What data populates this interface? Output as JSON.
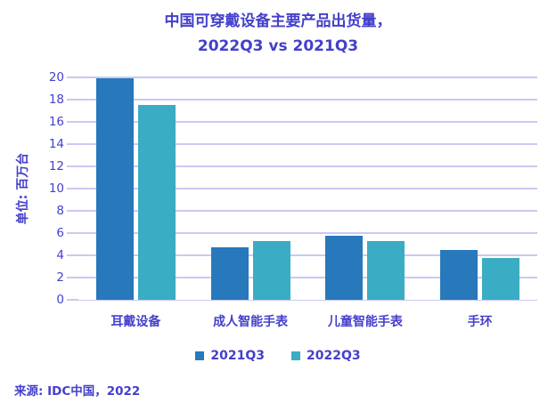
{
  "title": {
    "line1": "中国可穿戴设备主要产品出货量，",
    "line2": "2022Q3 vs 2021Q3"
  },
  "source": "来源: IDC中国，2022",
  "colors": {
    "text_accent": "#4440cb",
    "grid": "#c9c9f2",
    "series_2021q3": "#2878bc",
    "series_2022q3": "#3aacc4",
    "background": "#ffffff"
  },
  "chart_data": {
    "type": "bar",
    "title": "中国可穿戴设备主要产品出货量，2022Q3 vs 2021Q3",
    "xlabel": "",
    "ylabel": "单位: 百万台",
    "categories": [
      "耳戴设备",
      "成人智能手表",
      "儿童智能手表",
      "手环"
    ],
    "series": [
      {
        "name": "2021Q3",
        "color": "#2878bc",
        "values": [
          19.9,
          4.7,
          5.8,
          4.5
        ]
      },
      {
        "name": "2022Q3",
        "color": "#3aacc4",
        "values": [
          17.5,
          5.3,
          5.3,
          3.8
        ]
      }
    ],
    "ylim": [
      0,
      20
    ],
    "ytick_step": 2,
    "yticks": [
      0,
      2,
      4,
      6,
      8,
      10,
      12,
      14,
      16,
      18,
      20
    ],
    "grid": true,
    "legend_position": "bottom"
  }
}
